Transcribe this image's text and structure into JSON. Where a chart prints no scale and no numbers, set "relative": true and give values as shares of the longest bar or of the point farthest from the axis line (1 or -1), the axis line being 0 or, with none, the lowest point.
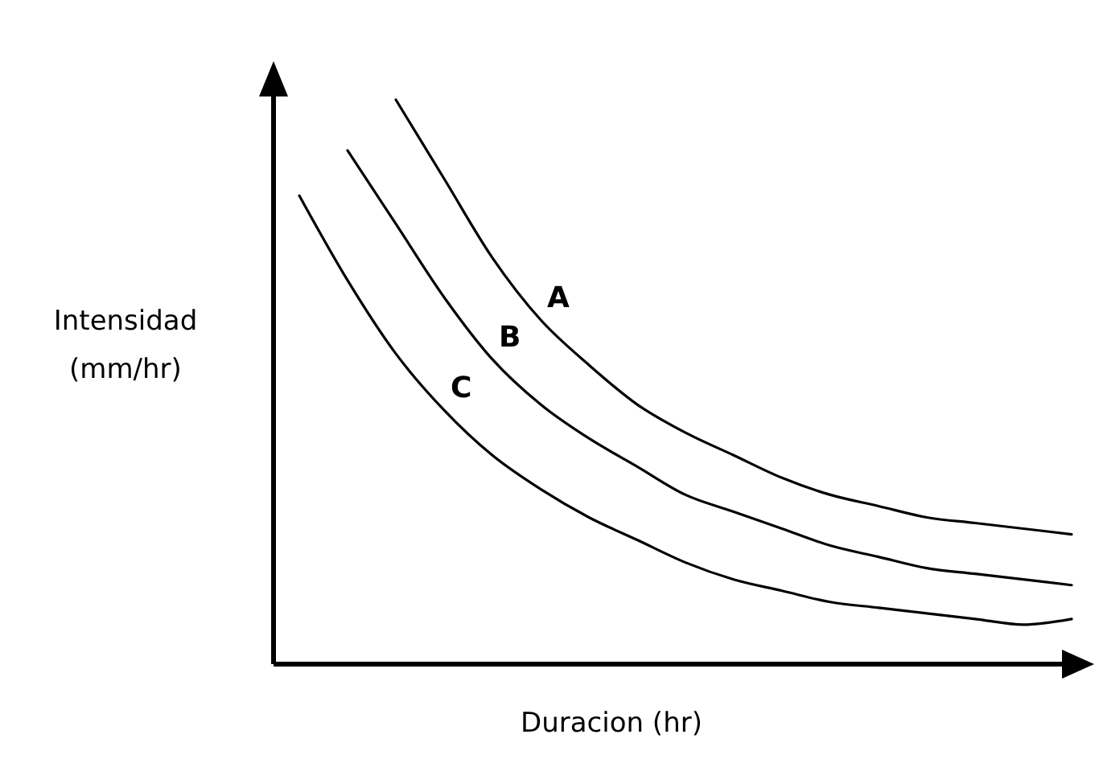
{
  "chart_data": {
    "type": "line",
    "relative": true,
    "xlabel": "Duracion (hr)",
    "ylabel": "Intensidad (mm/hr)",
    "marker": "none",
    "line_style": "solid",
    "categories": [
      null,
      null,
      null,
      null,
      null,
      null,
      null,
      null,
      null,
      null,
      null,
      null,
      null,
      null,
      null,
      null,
      null
    ],
    "series": [
      {
        "name": "A",
        "color": "#000000",
        "values": [
          null,
          null,
          1,
          0.86,
          0.72,
          0.61,
          0.53,
          0.46,
          0.41,
          0.37,
          0.33,
          0.3,
          0.28,
          0.26,
          0.25,
          0.24,
          0.23
        ]
      },
      {
        "name": "B",
        "color": "#000000",
        "values": [
          null,
          0.91,
          0.78,
          0.65,
          0.54,
          0.46,
          0.4,
          0.35,
          0.3,
          0.27,
          0.24,
          0.21,
          0.19,
          0.17,
          0.16,
          0.15,
          0.14
        ]
      },
      {
        "name": "C",
        "color": "#000000",
        "values": [
          0.83,
          0.68,
          0.55,
          0.45,
          0.37,
          0.31,
          0.26,
          0.22,
          0.18,
          0.15,
          0.13,
          0.11,
          0.1,
          0.09,
          0.08,
          0.07,
          0.08
        ]
      }
    ]
  }
}
